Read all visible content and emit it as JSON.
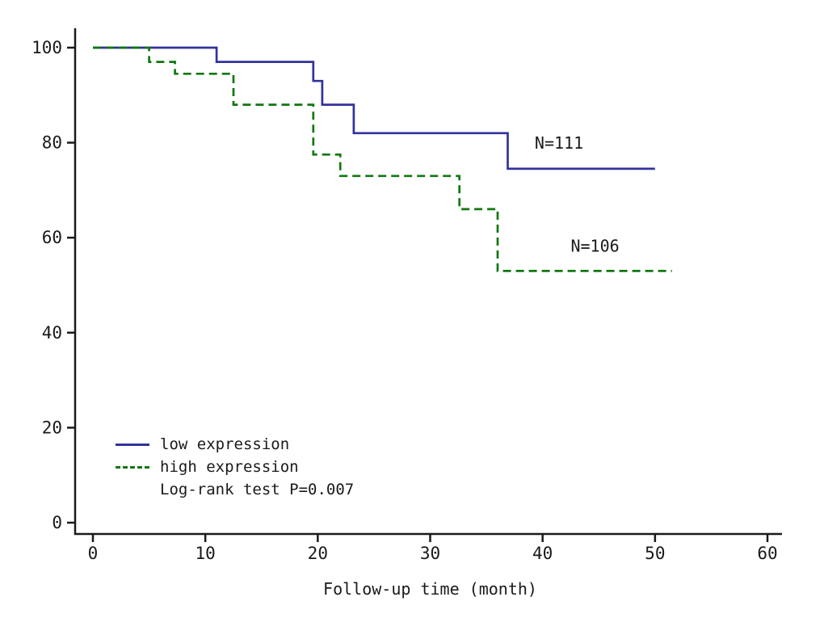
{
  "chart_data": {
    "type": "line",
    "subtype": "kaplan-meier-step",
    "title": "",
    "xlabel": "Follow-up time (month)",
    "ylabel": "",
    "xlim": [
      0,
      60
    ],
    "ylim": [
      0,
      100
    ],
    "xticks": [
      0,
      10,
      20,
      30,
      40,
      50,
      60
    ],
    "yticks": [
      0,
      20,
      40,
      60,
      80,
      100
    ],
    "grid": false,
    "legend_position": "bottom-left",
    "axis_color": "#1a1a1a",
    "series": [
      {
        "name": "low expression",
        "n_label": "N=111",
        "line_style": "solid",
        "color": "#32329b",
        "step_points": [
          [
            0,
            100
          ],
          [
            11,
            100
          ],
          [
            11,
            97
          ],
          [
            19.6,
            97
          ],
          [
            19.6,
            93
          ],
          [
            20.4,
            93
          ],
          [
            20.4,
            88
          ],
          [
            23.2,
            88
          ],
          [
            23.2,
            82
          ],
          [
            36.9,
            82
          ],
          [
            36.9,
            74.5
          ],
          [
            50,
            74.5
          ]
        ]
      },
      {
        "name": "high expression",
        "n_label": "N=106",
        "line_style": "dashed",
        "color": "#117711",
        "step_points": [
          [
            0,
            100
          ],
          [
            5,
            100
          ],
          [
            5,
            97
          ],
          [
            7.3,
            97
          ],
          [
            7.3,
            94.5
          ],
          [
            12.5,
            94.5
          ],
          [
            12.5,
            88
          ],
          [
            19.6,
            88
          ],
          [
            19.6,
            77.5
          ],
          [
            22,
            77.5
          ],
          [
            22,
            73
          ],
          [
            32.6,
            73
          ],
          [
            32.6,
            66
          ],
          [
            36,
            66
          ],
          [
            36,
            53
          ],
          [
            51.5,
            53
          ]
        ]
      }
    ],
    "annotations": [
      {
        "text": "N=111",
        "x": 39.3,
        "y": 78.7
      },
      {
        "text": "N=106",
        "x": 42.5,
        "y": 57.1
      }
    ],
    "stats_label": "Log-rank test P=0.007"
  }
}
